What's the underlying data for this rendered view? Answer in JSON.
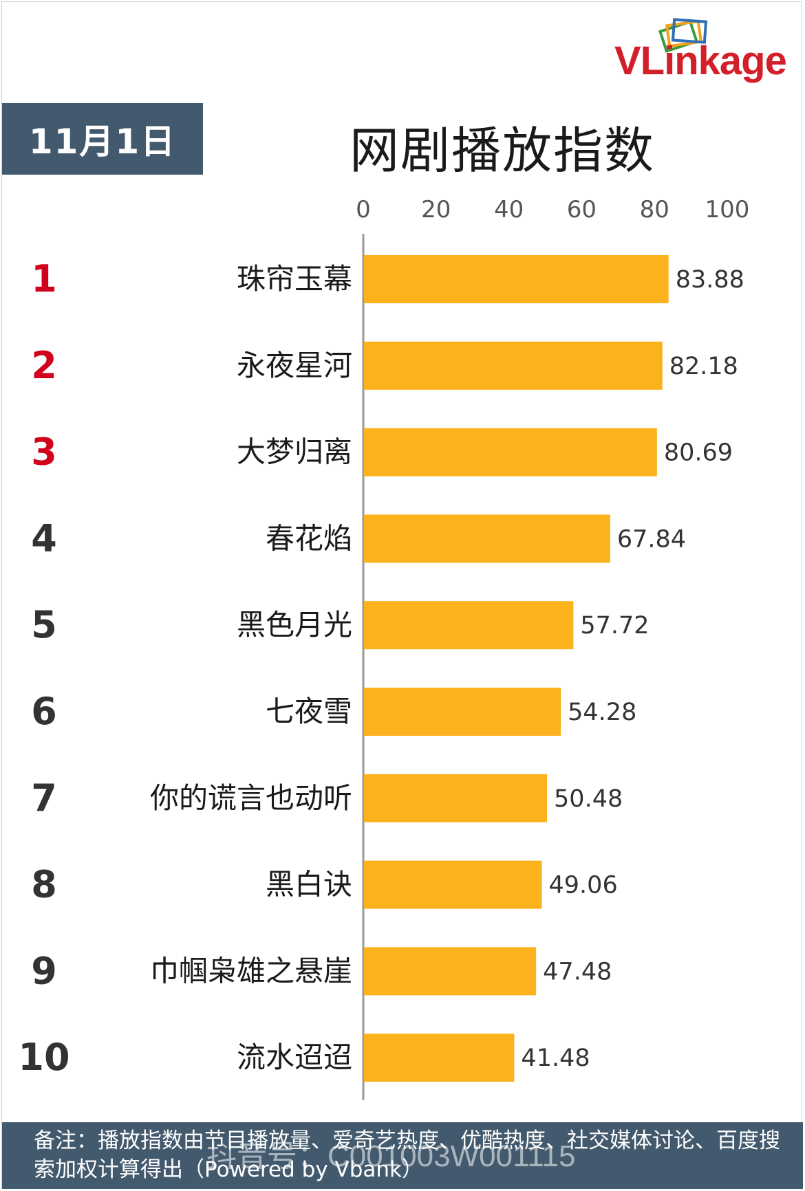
{
  "logo": {
    "text": "VLinkage"
  },
  "date": "11月1日",
  "chart_data": {
    "type": "bar",
    "orientation": "horizontal",
    "title": "网剧播放指数",
    "xlim": [
      0,
      100
    ],
    "x_ticks": [
      0,
      20,
      40,
      60,
      80,
      100
    ],
    "ranks": [
      "1",
      "2",
      "3",
      "4",
      "5",
      "6",
      "7",
      "8",
      "9",
      "10"
    ],
    "categories": [
      "珠帘玉幕",
      "永夜星河",
      "大梦归离",
      "春花焰",
      "黑色月光",
      "七夜雪",
      "你的谎言也动听",
      "黑白诀",
      "巾帼枭雄之悬崖",
      "流水迢迢"
    ],
    "values": [
      83.88,
      82.18,
      80.69,
      67.84,
      57.72,
      54.28,
      50.48,
      49.06,
      47.48,
      41.48
    ],
    "value_labels": [
      "83.88",
      "82.18",
      "80.69",
      "67.84",
      "57.72",
      "54.28",
      "50.48",
      "49.06",
      "47.48",
      "41.48"
    ],
    "grid": false,
    "bar_color": "#fbb21c",
    "top_rank_color": "#d0021b",
    "rank_color": "#333333"
  },
  "footer": {
    "note": "备注：播放指数由节目播放量、爱奇艺热度、优酷热度、社交媒体讨论、百度搜索加权计算得出（Powered by Vbank）"
  },
  "watermark": "抖音号：C001003W001115"
}
